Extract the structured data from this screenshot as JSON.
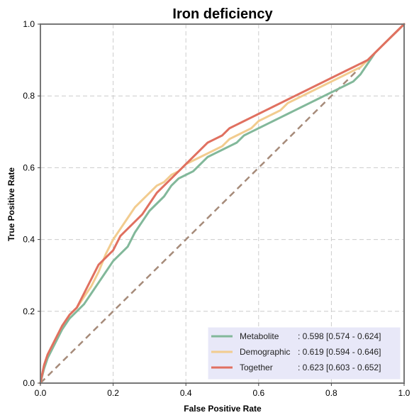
{
  "chart_data": {
    "type": "line",
    "title": "Iron deficiency",
    "xlabel": "False Positive Rate",
    "ylabel": "True Positive Rate",
    "xlim": [
      0,
      1
    ],
    "ylim": [
      0,
      1
    ],
    "xticks": [
      "0.0",
      "0.2",
      "0.4",
      "0.6",
      "0.8",
      "1.0"
    ],
    "yticks": [
      "0.0",
      "0.2",
      "0.4",
      "0.6",
      "0.8",
      "1.0"
    ],
    "grid": true,
    "legend_position": "lower-right",
    "legend_color": "#e8e8f8",
    "series": [
      {
        "name": "Metabolite",
        "legend_label": ": 0.598 [0.574 - 0.624]",
        "color": "#82b89a",
        "x": [
          0,
          0.01,
          0.02,
          0.04,
          0.06,
          0.08,
          0.1,
          0.12,
          0.14,
          0.16,
          0.18,
          0.2,
          0.22,
          0.24,
          0.26,
          0.28,
          0.3,
          0.32,
          0.34,
          0.36,
          0.38,
          0.4,
          0.42,
          0.44,
          0.46,
          0.48,
          0.5,
          0.52,
          0.54,
          0.56,
          0.58,
          0.6,
          0.62,
          0.64,
          0.66,
          0.68,
          0.7,
          0.72,
          0.74,
          0.76,
          0.78,
          0.8,
          0.82,
          0.84,
          0.86,
          0.88,
          0.9,
          0.92,
          0.94,
          0.96,
          0.98,
          1.0
        ],
        "y": [
          0,
          0.04,
          0.07,
          0.11,
          0.15,
          0.18,
          0.2,
          0.22,
          0.25,
          0.28,
          0.31,
          0.34,
          0.36,
          0.38,
          0.42,
          0.45,
          0.48,
          0.5,
          0.52,
          0.55,
          0.57,
          0.58,
          0.59,
          0.61,
          0.63,
          0.64,
          0.65,
          0.66,
          0.67,
          0.69,
          0.7,
          0.71,
          0.72,
          0.73,
          0.74,
          0.75,
          0.76,
          0.77,
          0.78,
          0.79,
          0.8,
          0.81,
          0.82,
          0.83,
          0.84,
          0.86,
          0.89,
          0.92,
          0.94,
          0.96,
          0.98,
          1.0
        ]
      },
      {
        "name": "Demographic",
        "legend_label": ": 0.619 [0.594 - 0.646]",
        "color": "#f2cc8f",
        "x": [
          0,
          0.01,
          0.02,
          0.04,
          0.06,
          0.08,
          0.1,
          0.12,
          0.14,
          0.16,
          0.18,
          0.2,
          0.22,
          0.24,
          0.26,
          0.28,
          0.3,
          0.32,
          0.34,
          0.36,
          0.38,
          0.4,
          0.42,
          0.44,
          0.46,
          0.48,
          0.5,
          0.52,
          0.54,
          0.56,
          0.58,
          0.6,
          0.62,
          0.64,
          0.66,
          0.68,
          0.7,
          0.72,
          0.74,
          0.76,
          0.78,
          0.8,
          0.82,
          0.84,
          0.86,
          0.88,
          0.9,
          0.92,
          0.94,
          0.96,
          0.98,
          1.0
        ],
        "y": [
          0,
          0.05,
          0.08,
          0.12,
          0.16,
          0.19,
          0.21,
          0.24,
          0.27,
          0.31,
          0.36,
          0.4,
          0.43,
          0.46,
          0.49,
          0.51,
          0.53,
          0.55,
          0.56,
          0.58,
          0.59,
          0.61,
          0.62,
          0.63,
          0.64,
          0.65,
          0.66,
          0.68,
          0.69,
          0.7,
          0.71,
          0.73,
          0.74,
          0.75,
          0.76,
          0.78,
          0.79,
          0.8,
          0.81,
          0.82,
          0.83,
          0.84,
          0.85,
          0.86,
          0.87,
          0.88,
          0.9,
          0.92,
          0.94,
          0.96,
          0.98,
          1.0
        ]
      },
      {
        "name": "Together",
        "legend_label": ": 0.623 [0.603 - 0.652]",
        "color": "#e07060",
        "x": [
          0,
          0.01,
          0.02,
          0.04,
          0.06,
          0.08,
          0.1,
          0.12,
          0.14,
          0.16,
          0.18,
          0.2,
          0.22,
          0.24,
          0.26,
          0.28,
          0.3,
          0.32,
          0.34,
          0.36,
          0.38,
          0.4,
          0.42,
          0.44,
          0.46,
          0.48,
          0.5,
          0.52,
          0.54,
          0.56,
          0.58,
          0.6,
          0.62,
          0.64,
          0.66,
          0.68,
          0.7,
          0.72,
          0.74,
          0.76,
          0.78,
          0.8,
          0.82,
          0.84,
          0.86,
          0.88,
          0.9,
          0.92,
          0.94,
          0.96,
          0.98,
          1.0
        ],
        "y": [
          0,
          0.05,
          0.08,
          0.12,
          0.16,
          0.19,
          0.21,
          0.25,
          0.29,
          0.33,
          0.35,
          0.37,
          0.41,
          0.43,
          0.45,
          0.47,
          0.5,
          0.53,
          0.55,
          0.57,
          0.59,
          0.61,
          0.63,
          0.65,
          0.67,
          0.68,
          0.69,
          0.71,
          0.72,
          0.73,
          0.74,
          0.75,
          0.76,
          0.77,
          0.78,
          0.79,
          0.8,
          0.81,
          0.82,
          0.83,
          0.84,
          0.85,
          0.86,
          0.87,
          0.88,
          0.89,
          0.9,
          0.92,
          0.94,
          0.96,
          0.98,
          1.0
        ]
      }
    ],
    "reference_line": {
      "x": [
        0,
        1
      ],
      "y": [
        0,
        1
      ],
      "color": "#a68b7a",
      "style": "dashed"
    }
  }
}
